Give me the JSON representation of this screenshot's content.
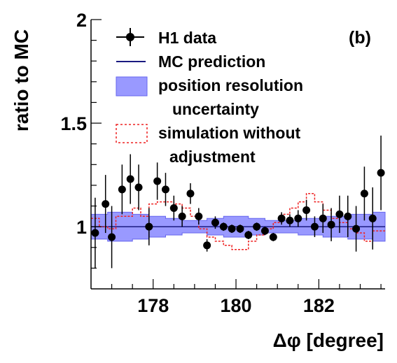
{
  "chart_data": {
    "type": "scatter",
    "panel_label": "(b)",
    "xlabel": "Δφ [degree]",
    "ylabel": "ratio to MC",
    "xlim": [
      176.5,
      183.6
    ],
    "ylim": [
      0.7,
      2.0
    ],
    "x_ticks": [
      178,
      180,
      182
    ],
    "x_tick_labels": [
      "178",
      "180",
      "182"
    ],
    "y_ticks": [
      1,
      1.5,
      2
    ],
    "y_tick_labels": [
      "1",
      "1.5",
      "2"
    ],
    "colors": {
      "data": "#000000",
      "mc_line": "#1a1a80",
      "band_fill": "#9999ff",
      "band_edge": "#6666ee",
      "simulation": "#ee2222"
    },
    "legend": {
      "placement": "top",
      "entries": [
        {
          "label": "H1 data",
          "style": "marker-errorbar"
        },
        {
          "label": "MC prediction",
          "style": "line"
        },
        {
          "label_lines": [
            "position resolution",
            "uncertainty"
          ],
          "style": "box"
        },
        {
          "label_lines": [
            "simulation without",
            "adjustment"
          ],
          "style": "dashed-box"
        }
      ]
    },
    "series": [
      {
        "name": "H1 data",
        "x": [
          176.6,
          176.85,
          177.0,
          177.25,
          177.45,
          177.65,
          177.9,
          178.1,
          178.3,
          178.5,
          178.7,
          178.9,
          179.1,
          179.3,
          179.5,
          179.7,
          179.9,
          180.1,
          180.3,
          180.5,
          180.7,
          180.9,
          181.1,
          181.3,
          181.5,
          181.7,
          181.9,
          182.1,
          182.3,
          182.5,
          182.7,
          182.9,
          183.1,
          183.3,
          183.5
        ],
        "y": [
          0.97,
          1.11,
          0.95,
          1.18,
          1.23,
          1.19,
          1.0,
          1.22,
          1.18,
          1.09,
          1.05,
          1.16,
          1.05,
          0.91,
          1.02,
          1.0,
          0.99,
          0.99,
          0.96,
          1.0,
          0.98,
          0.95,
          1.04,
          1.03,
          1.04,
          1.08,
          1.0,
          1.04,
          1.01,
          1.06,
          1.05,
          0.99,
          1.16,
          1.04,
          1.26
        ],
        "yerr": [
          0.17,
          0.14,
          0.15,
          0.12,
          0.12,
          0.11,
          0.09,
          0.09,
          0.08,
          0.06,
          0.05,
          0.05,
          0.04,
          0.03,
          0.03,
          0.02,
          0.02,
          0.02,
          0.02,
          0.02,
          0.02,
          0.02,
          0.03,
          0.03,
          0.04,
          0.05,
          0.05,
          0.07,
          0.08,
          0.09,
          0.1,
          0.11,
          0.13,
          0.15,
          0.18
        ]
      },
      {
        "name": "MC prediction",
        "x": [
          176.5,
          183.6
        ],
        "y": [
          1.0,
          1.0
        ]
      },
      {
        "name": "position resolution uncertainty",
        "edges": [
          176.5,
          176.7,
          176.9,
          177.1,
          177.3,
          177.5,
          177.7,
          177.9,
          178.1,
          178.3,
          178.5,
          178.7,
          178.9,
          179.1,
          179.3,
          179.5,
          179.7,
          179.9,
          180.1,
          180.3,
          180.5,
          180.7,
          180.9,
          181.1,
          181.3,
          181.5,
          181.7,
          181.9,
          182.1,
          182.3,
          182.5,
          182.7,
          182.9,
          183.1,
          183.3,
          183.6
        ],
        "low": [
          0.94,
          0.94,
          0.93,
          0.93,
          0.93,
          0.94,
          0.94,
          0.95,
          0.95,
          0.96,
          0.96,
          0.97,
          0.97,
          0.97,
          0.96,
          0.96,
          0.95,
          0.95,
          0.95,
          0.96,
          0.96,
          0.97,
          0.97,
          0.97,
          0.97,
          0.96,
          0.96,
          0.96,
          0.95,
          0.95,
          0.95,
          0.94,
          0.94,
          0.94,
          0.93
        ],
        "high": [
          1.06,
          1.06,
          1.07,
          1.07,
          1.07,
          1.06,
          1.06,
          1.05,
          1.05,
          1.04,
          1.04,
          1.03,
          1.03,
          1.03,
          1.04,
          1.04,
          1.05,
          1.05,
          1.05,
          1.04,
          1.04,
          1.03,
          1.03,
          1.03,
          1.03,
          1.04,
          1.04,
          1.04,
          1.05,
          1.05,
          1.05,
          1.06,
          1.06,
          1.06,
          1.07
        ]
      },
      {
        "name": "simulation without adjustment",
        "edges": [
          176.5,
          176.7,
          176.9,
          177.1,
          177.3,
          177.5,
          177.7,
          177.9,
          178.1,
          178.3,
          178.5,
          178.7,
          178.9,
          179.1,
          179.3,
          179.5,
          179.7,
          179.9,
          180.1,
          180.3,
          180.5,
          180.7,
          180.9,
          181.1,
          181.3,
          181.5,
          181.7,
          181.9,
          182.1,
          182.3,
          182.5,
          182.7,
          182.9,
          183.1,
          183.3,
          183.6
        ],
        "values": [
          1.04,
          1.0,
          0.99,
          1.05,
          1.05,
          1.09,
          1.05,
          1.11,
          1.12,
          1.12,
          1.11,
          1.09,
          1.05,
          0.99,
          0.95,
          0.93,
          0.91,
          0.89,
          0.89,
          0.93,
          0.96,
          0.99,
          1.02,
          1.06,
          1.09,
          1.12,
          1.16,
          1.12,
          1.08,
          1.04,
          1.02,
          0.99,
          0.97,
          0.93,
          0.98
        ]
      }
    ]
  }
}
